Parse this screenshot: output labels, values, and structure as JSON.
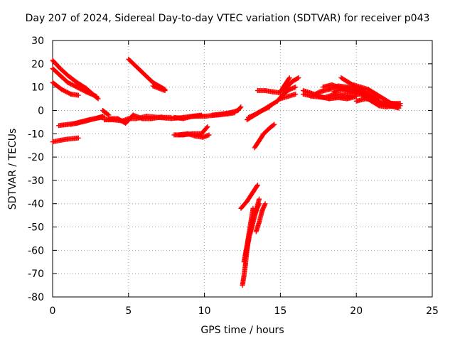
{
  "chart_data": {
    "type": "scatter",
    "title": "Day 207 of 2024, Sidereal Day-to-day VTEC variation (SDTVAR) for receiver p043",
    "xlabel": "GPS time / hours",
    "ylabel": "SDTVAR / TECUs",
    "xlim": [
      0,
      25
    ],
    "ylim": [
      -80,
      30
    ],
    "xticks": [
      0,
      5,
      10,
      15,
      20,
      25
    ],
    "yticks": [
      -80,
      -70,
      -60,
      -50,
      -40,
      -30,
      -20,
      -10,
      0,
      10,
      20,
      30
    ],
    "grid": true,
    "marker": "+",
    "color": "#ff0000",
    "segments": [
      {
        "x": [
          0.0,
          0.5,
          1.0,
          1.7
        ],
        "y": [
          -13.5,
          -12.8,
          -12.3,
          -11.8
        ]
      },
      {
        "x": [
          0.0,
          0.6,
          1.2,
          1.7
        ],
        "y": [
          12,
          9,
          7,
          6.5
        ]
      },
      {
        "x": [
          0.0,
          0.5,
          1.0,
          1.6,
          2.2,
          2.9
        ],
        "y": [
          18,
          15,
          12,
          10,
          8,
          6
        ]
      },
      {
        "x": [
          0.0,
          0.5,
          1.0,
          1.6,
          2.2,
          3.0
        ],
        "y": [
          21.5,
          18,
          15,
          12,
          9.5,
          5
        ]
      },
      {
        "x": [
          0.4,
          1.0,
          1.6,
          2.2,
          2.8,
          3.3
        ],
        "y": [
          -6.5,
          -6,
          -5.5,
          -4.5,
          -3.5,
          -2.5
        ]
      },
      {
        "x": [
          1.2,
          1.8,
          2.4,
          3.0,
          3.4
        ],
        "y": [
          -6,
          -5,
          -4,
          -3.2,
          -2.8
        ]
      },
      {
        "x": [
          3.3,
          3.5,
          3.7
        ],
        "y": [
          0,
          -1,
          -2
        ]
      },
      {
        "x": [
          3.4,
          4.0,
          4.6,
          5.0,
          5.5,
          6.2,
          7.0,
          7.8
        ],
        "y": [
          -4,
          -4,
          -4.5,
          -3.5,
          -3.5,
          -2.5,
          -3,
          -3
        ]
      },
      {
        "x": [
          3.7,
          4.3,
          4.8,
          5.3,
          5.9,
          6.5,
          7.2
        ],
        "y": [
          -3.5,
          -3.5,
          -5.5,
          -2.0,
          -3.5,
          -3.5,
          -2.8
        ]
      },
      {
        "x": [
          7.0,
          7.8,
          8.6,
          9.3,
          10.0,
          10.8,
          11.5,
          12.0
        ],
        "y": [
          -3,
          -3.5,
          -3,
          -2.5,
          -2.5,
          -2,
          -1.5,
          -1
        ]
      },
      {
        "x": [
          8.0,
          8.6,
          9.2,
          9.8
        ],
        "y": [
          -3,
          -3.5,
          -2.5,
          -2
        ]
      },
      {
        "x": [
          10.5,
          11.2,
          11.8,
          12.2,
          12.4
        ],
        "y": [
          -2,
          -1.5,
          -0.8,
          0,
          1.5
        ]
      },
      {
        "x": [
          8.0,
          8.6,
          9.2,
          9.8,
          10.2
        ],
        "y": [
          -10.5,
          -10.5,
          -10,
          -10,
          -7
        ]
      },
      {
        "x": [
          8.3,
          8.9,
          9.4,
          9.9,
          10.3
        ],
        "y": [
          -10.5,
          -10,
          -11,
          -11.5,
          -10.5
        ]
      },
      {
        "x": [
          5.0,
          5.8,
          6.6,
          7.4
        ],
        "y": [
          22,
          17,
          12,
          9
        ]
      },
      {
        "x": [
          6.6,
          7.0,
          7.4
        ],
        "y": [
          10.5,
          9.5,
          8.5
        ]
      },
      {
        "x": [
          12.4,
          12.8,
          13.2,
          13.5
        ],
        "y": [
          -42,
          -39,
          -35,
          -32
        ]
      },
      {
        "x": [
          12.5,
          12.6,
          12.7,
          12.8,
          12.9
        ],
        "y": [
          -75,
          -71,
          -66,
          -60,
          -55
        ]
      },
      {
        "x": [
          12.6,
          12.8,
          13.0,
          13.2
        ],
        "y": [
          -65,
          -58,
          -50,
          -42
        ]
      },
      {
        "x": [
          12.7,
          12.9,
          13.1,
          13.4,
          13.6
        ],
        "y": [
          -62,
          -56,
          -49,
          -43,
          -38
        ]
      },
      {
        "x": [
          13.0,
          13.2,
          13.4,
          13.6
        ],
        "y": [
          -53,
          -48,
          -43,
          -40
        ]
      },
      {
        "x": [
          13.4,
          13.6,
          13.8,
          14.0
        ],
        "y": [
          -52,
          -48,
          -43,
          -40
        ]
      },
      {
        "x": [
          13.3,
          13.6,
          13.9,
          14.3,
          14.6
        ],
        "y": [
          -16,
          -13,
          -10,
          -7.5,
          -6
        ]
      },
      {
        "x": [
          12.8,
          13.3,
          13.8,
          14.3,
          14.8
        ],
        "y": [
          -4,
          -2,
          0,
          2,
          4
        ]
      },
      {
        "x": [
          12.9,
          13.4,
          13.8,
          14.3
        ],
        "y": [
          -3,
          -1.5,
          0,
          1.5
        ]
      },
      {
        "x": [
          13.5,
          14.0,
          14.5,
          15.0
        ],
        "y": [
          8.5,
          8.5,
          8,
          7.5
        ]
      },
      {
        "x": [
          14.8,
          15.2,
          15.6,
          16.0
        ],
        "y": [
          4,
          7,
          9,
          10
        ]
      },
      {
        "x": [
          15.0,
          15.3,
          15.6
        ],
        "y": [
          8,
          11,
          14
        ]
      },
      {
        "x": [
          15.2,
          15.5,
          15.8,
          16.2
        ],
        "y": [
          9,
          10.5,
          12.5,
          14
        ]
      },
      {
        "x": [
          15.0,
          15.5,
          16.0
        ],
        "y": [
          5,
          6,
          7
        ]
      },
      {
        "x": [
          16.5,
          17.0,
          17.6,
          18.2,
          18.8,
          19.4,
          20.0
        ],
        "y": [
          8.5,
          7.5,
          6,
          5,
          5.5,
          5,
          6
        ]
      },
      {
        "x": [
          16.5,
          17.2,
          17.9,
          18.6,
          19.2,
          19.8
        ],
        "y": [
          7,
          6,
          5.5,
          7,
          6.5,
          6
        ]
      },
      {
        "x": [
          17.0,
          17.6,
          18.2,
          18.8,
          19.4,
          20.0,
          20.6
        ],
        "y": [
          6,
          8,
          9,
          10.5,
          10,
          9,
          8
        ]
      },
      {
        "x": [
          17.8,
          18.4,
          19.0,
          19.6,
          20.2,
          20.8,
          21.4
        ],
        "y": [
          10,
          11,
          9.5,
          9.5,
          8.5,
          7,
          5
        ]
      },
      {
        "x": [
          18.5,
          19.0,
          19.6,
          20.2,
          20.8,
          21.4
        ],
        "y": [
          8,
          9,
          8,
          7,
          6,
          4.5
        ]
      },
      {
        "x": [
          19.0,
          19.5,
          20.0,
          20.5,
          21.0,
          21.6,
          22.2,
          22.8
        ],
        "y": [
          14,
          12,
          10,
          7,
          5,
          3,
          2,
          1
        ]
      },
      {
        "x": [
          19.8,
          20.3,
          20.8,
          21.3,
          21.8,
          22.3,
          22.8
        ],
        "y": [
          11,
          10,
          9,
          7,
          5,
          3,
          2.5
        ]
      },
      {
        "x": [
          20.5,
          21.0,
          21.5,
          22.0,
          22.5,
          22.9
        ],
        "y": [
          6,
          4,
          2,
          1.5,
          2,
          2
        ]
      },
      {
        "x": [
          20.0,
          20.6,
          21.2,
          21.8,
          22.4,
          22.9
        ],
        "y": [
          4,
          5,
          4.5,
          3,
          3,
          3
        ]
      }
    ]
  }
}
